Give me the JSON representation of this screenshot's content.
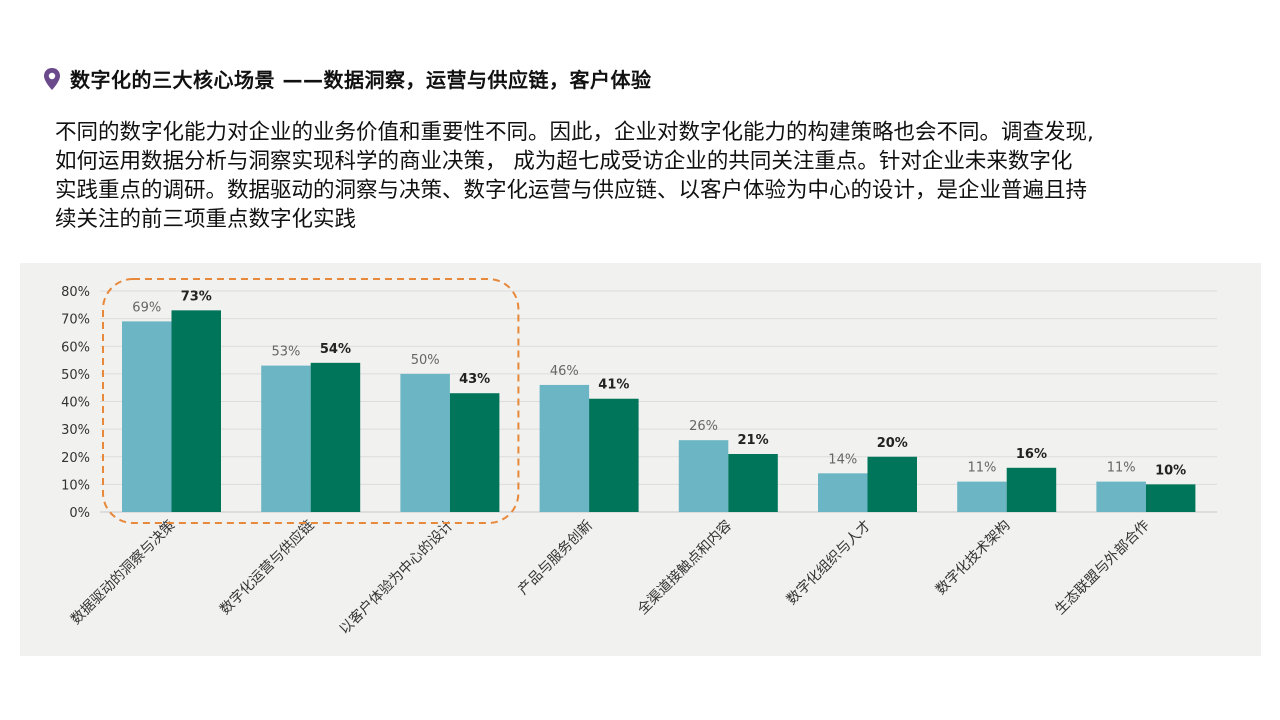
{
  "heading": {
    "icon": "location-pin-icon",
    "icon_color": "#6b4a8c",
    "text": "数字化的三大核心场景 ——数据洞察，运营与供应链，客户体验"
  },
  "description": {
    "lines": [
      "不同的数字化能力对企业的业务价值和重要性不同。因此，企业对数字化能力的构建策略也会不同。调查发现,",
      "如何运用数据分析与洞察实现科学的商业决策， 成为超七成受访企业的共同关注重点。针对企业未来数字化",
      "实践重点的调研。数据驱动的洞察与决策、数字化运营与供应链、以客户体验为中心的设计，是企业普遍且持",
      "续关注的前三项重点数字化实践"
    ]
  },
  "chart_data": {
    "type": "bar",
    "categories": [
      "数据驱动的洞察与决策",
      "数字化运营与供应链",
      "以客户体验为中心的设计",
      "产品与服务创新",
      "全渠道接触点和内容",
      "数字化组织与人才",
      "数字化技术架构",
      "生态联盟与外部合作"
    ],
    "series": [
      {
        "values": [
          69,
          53,
          50,
          46,
          26,
          14,
          11,
          11
        ],
        "labels": [
          "69%",
          "53%",
          "50%",
          "46%",
          "26%",
          "14%",
          "11%",
          "11%"
        ],
        "color": "#6bb5c5"
      },
      {
        "values": [
          73,
          54,
          43,
          41,
          21,
          20,
          16,
          10
        ],
        "labels": [
          "73%",
          "54%",
          "43%",
          "41%",
          "21%",
          "20%",
          "16%",
          "10%"
        ],
        "color": "#00755a"
      }
    ],
    "ylim": [
      0,
      80
    ],
    "yticks": [
      0,
      10,
      20,
      30,
      40,
      50,
      60,
      70,
      80
    ],
    "ytick_labels": [
      "0%",
      "10%",
      "20%",
      "30%",
      "40%",
      "50%",
      "60%",
      "70%",
      "80%"
    ],
    "grid": true,
    "highlight": {
      "categories": [
        0,
        1,
        2
      ],
      "style": "dashed-rounded",
      "color": "#e8883a"
    },
    "background": "#f1f1ef"
  }
}
